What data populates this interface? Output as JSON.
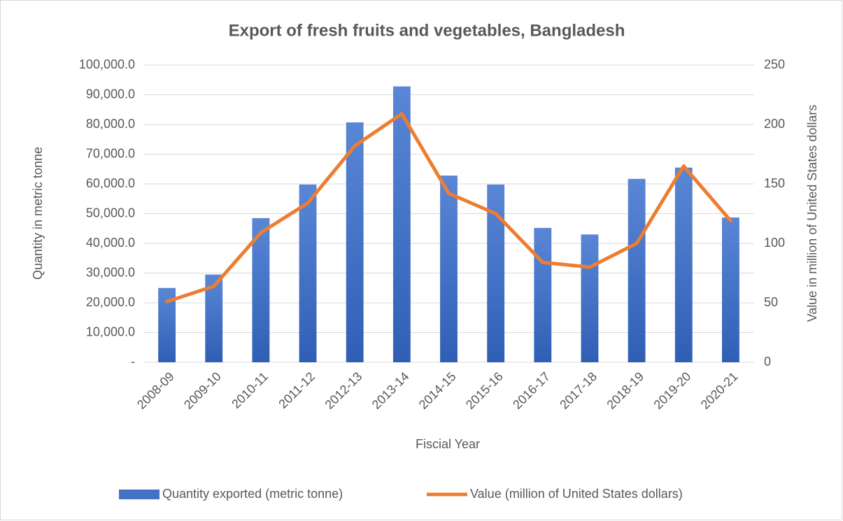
{
  "chart_data": {
    "type": "bar_line",
    "title": "Export of fresh fruits and vegetables, Bangladesh",
    "x_label": "Fiscial Year",
    "y_label": "Quantity in metric tonne",
    "y2_label": "Value in million of United States dollars",
    "categories": [
      "2008-09",
      "2009-10",
      "2010-11",
      "2011-12",
      "2012-13",
      "2013-14",
      "2014-15",
      "2015-16",
      "2016-17",
      "2017-18",
      "2018-19",
      "2019-20",
      "2020-21"
    ],
    "series": [
      {
        "name": "Quantity exported (metric tonne)",
        "type": "bar",
        "color": "#4472c4",
        "values": [
          25000,
          29500,
          48500,
          59800,
          80700,
          92800,
          62800,
          59800,
          45200,
          43000,
          61700,
          65500,
          48700
        ]
      },
      {
        "name": "Value (million of United States dollars)",
        "type": "line",
        "axis": "y2",
        "color": "#ed7d31",
        "values": [
          51,
          64,
          109,
          134,
          182,
          209,
          142,
          125,
          84,
          80,
          100,
          165,
          119
        ]
      }
    ],
    "ylim": [
      0,
      100000
    ],
    "yticks": [
      {
        "value": 0,
        "label": "-"
      },
      {
        "value": 10000,
        "label": "10,000.0"
      },
      {
        "value": 20000,
        "label": "20,000.0"
      },
      {
        "value": 30000,
        "label": "30,000.0"
      },
      {
        "value": 40000,
        "label": "40,000.0"
      },
      {
        "value": 50000,
        "label": "50,000.0"
      },
      {
        "value": 60000,
        "label": "60,000.0"
      },
      {
        "value": 70000,
        "label": "70,000.0"
      },
      {
        "value": 80000,
        "label": "80,000.0"
      },
      {
        "value": 90000,
        "label": "90,000.0"
      },
      {
        "value": 100000,
        "label": "100,000.0"
      }
    ],
    "y2lim": [
      0,
      250
    ],
    "y2ticks": [
      0,
      50,
      100,
      150,
      200,
      250
    ],
    "grid": true,
    "legend": "bottom"
  }
}
